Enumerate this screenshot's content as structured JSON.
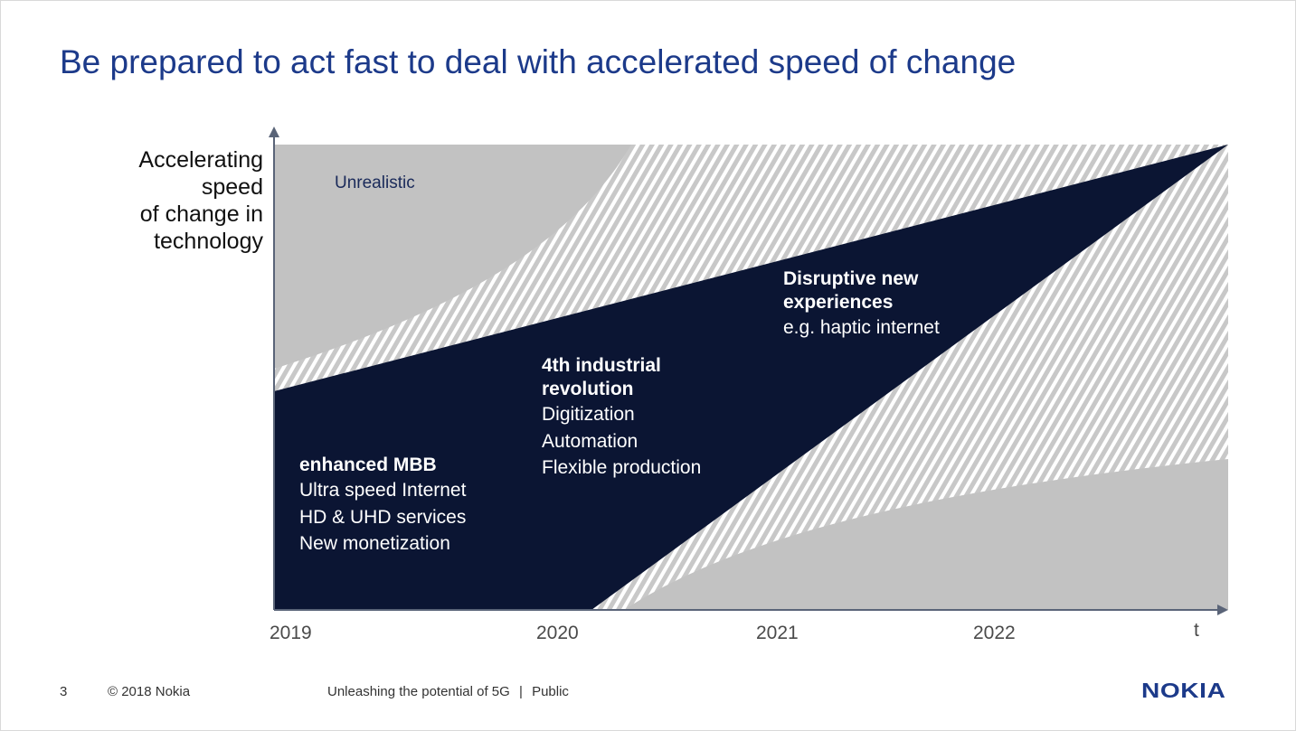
{
  "slide": {
    "title": "Be prepared to act fast to deal with accelerated speed of change",
    "colors": {
      "title": "#1c3a8a",
      "navy_region": "#0b1533",
      "gray_region": "#c2c2c2",
      "hatch": "#c8c8c8",
      "logo": "#1c3a8a"
    }
  },
  "diagram": {
    "y_axis_label": [
      "Accelerating",
      "speed",
      "of change in",
      "technology"
    ],
    "x_axis_years": [
      "2019",
      "2020",
      "2021",
      "2022"
    ],
    "x_axis_end_label": "t",
    "unrealistic_label": "Unrealistic",
    "regions": [
      {
        "heading": [
          "enhanced MBB"
        ],
        "items": [
          "Ultra speed Internet",
          "HD & UHD services",
          "New monetization"
        ]
      },
      {
        "heading": [
          "4th industrial",
          "revolution"
        ],
        "items": [
          "Digitization",
          "Automation",
          "Flexible production"
        ]
      },
      {
        "heading": [
          "Disruptive new",
          "experiences"
        ],
        "items": [
          "e.g. haptic internet"
        ]
      }
    ]
  },
  "footer": {
    "page_number": "3",
    "copyright": "© 2018 Nokia",
    "document_title": "Unleashing the potential of 5G",
    "separator": "|",
    "classification": "Public",
    "logo_text": "NOKIA"
  }
}
